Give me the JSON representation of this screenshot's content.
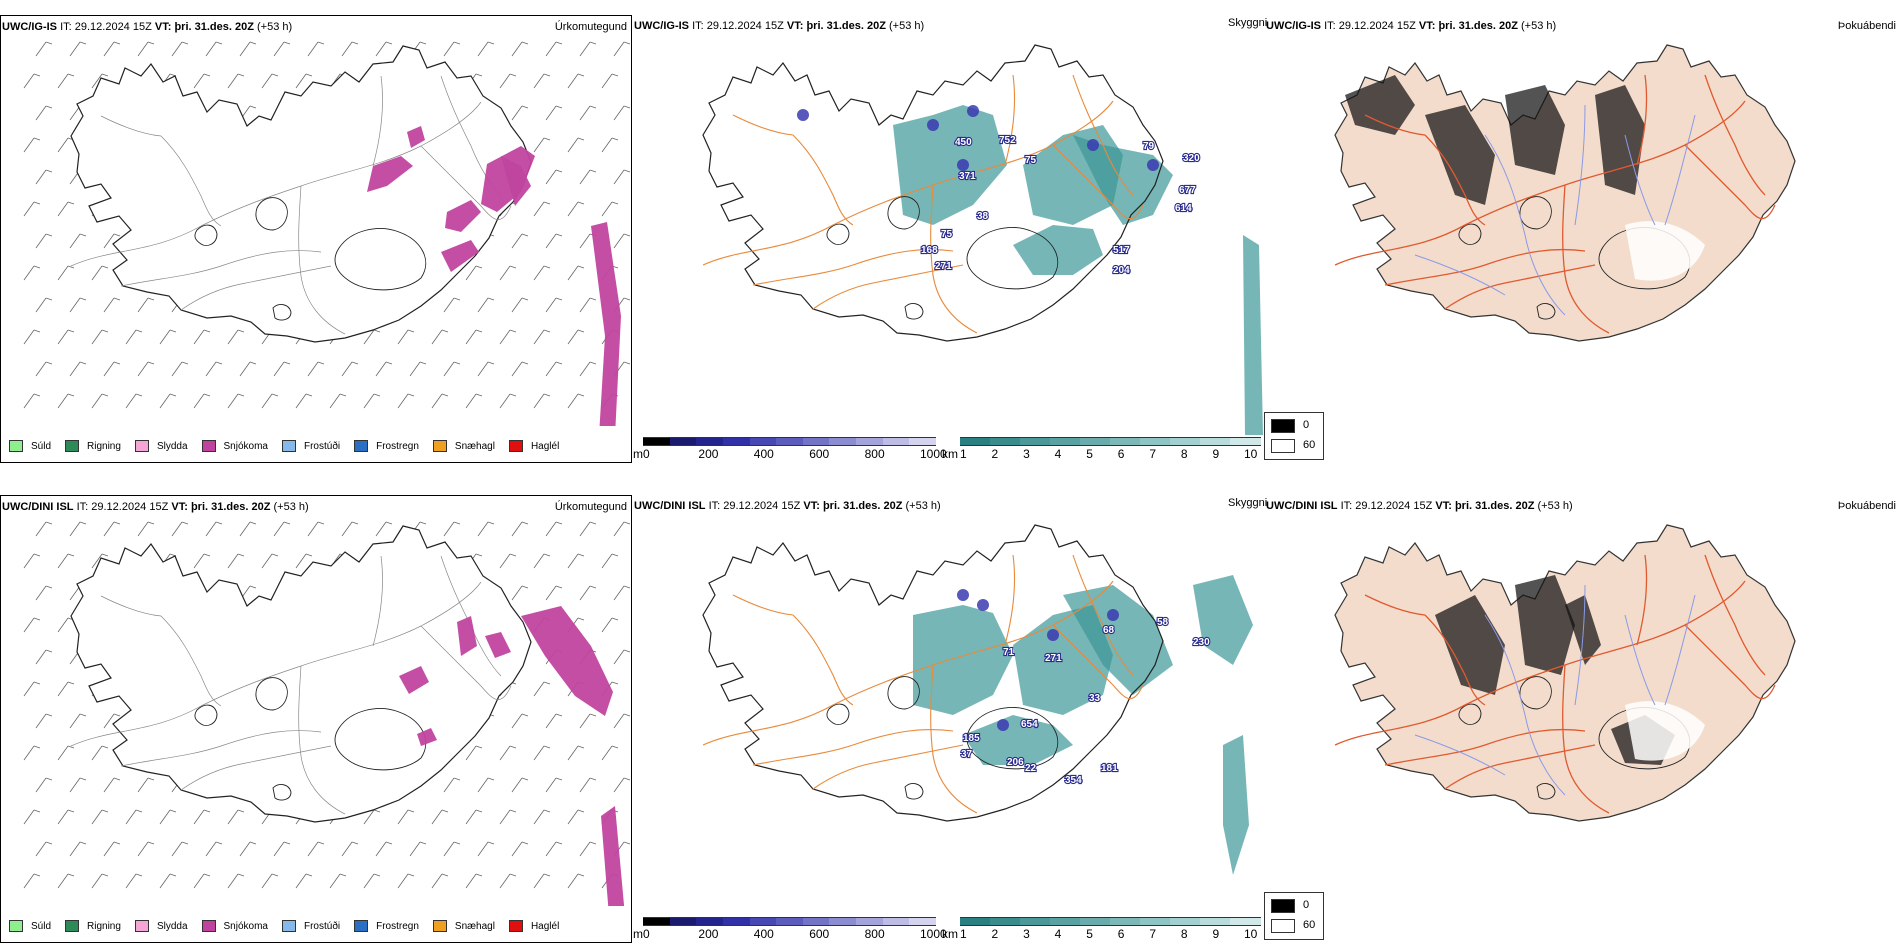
{
  "rows": [
    {
      "model": "UWC/IG-IS",
      "it_label": "IT:",
      "it_value": "29.12.2024 15Z",
      "vt_label": "VT:",
      "vt_value": "þri. 31.des. 20Z",
      "lead": "(+53 h)",
      "panel_names": [
        "Úrkomutegund",
        "Skyggni",
        "Þokuábendi"
      ],
      "cloud_labels": [
        "450",
        "752",
        "75",
        "371",
        "79",
        "320",
        "677",
        "614",
        "75",
        "168",
        "517",
        "271",
        "204",
        "38"
      ]
    },
    {
      "model": "UWC/DINI ISL",
      "it_label": "IT:",
      "it_value": "29.12.2024 15Z",
      "vt_label": "VT:",
      "vt_value": "þri. 31.des. 20Z",
      "lead": "(+53 h)",
      "panel_names": [
        "Úrkomutegund",
        "Skyggni",
        "Þokuábendi"
      ],
      "cloud_labels": [
        "68",
        "58",
        "230",
        "71",
        "271",
        "33",
        "654",
        "185",
        "37",
        "206",
        "22",
        "181",
        "354"
      ]
    }
  ],
  "precip_legend": [
    {
      "label": "Súld",
      "color": "#90ee90"
    },
    {
      "label": "Rigning",
      "color": "#2e8b57"
    },
    {
      "label": "Slydda",
      "color": "#f4a6d7"
    },
    {
      "label": "Snjókoma",
      "color": "#c0449f"
    },
    {
      "label": "Frostúði",
      "color": "#87b8ea"
    },
    {
      "label": "Frostregn",
      "color": "#2a6fc4"
    },
    {
      "label": "Snæhagl",
      "color": "#f0a020"
    },
    {
      "label": "Haglél",
      "color": "#e01010"
    }
  ],
  "cloud_base_bar": {
    "unit": "m",
    "ticks": [
      "0",
      "200",
      "400",
      "600",
      "800",
      "1000"
    ],
    "colors": [
      "#000000",
      "#1a1a6e",
      "#24248f",
      "#3030a8",
      "#4848b4",
      "#5c5cbc",
      "#7474c6",
      "#8c8cd0",
      "#a4a4da",
      "#bcbce4",
      "#d4d4ee"
    ]
  },
  "visibility_bar": {
    "unit": "km",
    "ticks": [
      "1",
      "2",
      "3",
      "4",
      "5",
      "6",
      "7",
      "8",
      "9",
      "10"
    ],
    "colors": [
      "#2a8080",
      "#3a8c8c",
      "#4a9898",
      "#5aa2a2",
      "#6aacac",
      "#7cb8b8",
      "#8ec4c4",
      "#a2d0d0",
      "#b8dcdc",
      "#d0e8e8"
    ]
  },
  "fog_legend": [
    {
      "label": "0",
      "color": "#000000"
    },
    {
      "label": "60",
      "color": "#ffffff"
    }
  ],
  "colors": {
    "snow": "#c0449f",
    "visibility": "#3d9797",
    "cloud_base": "#3a3ab0",
    "roads": "#e88a3a",
    "land_fog": "#f3dccb",
    "fog_roads": "#e05a30",
    "fog_rivers": "#8a9ae8"
  }
}
